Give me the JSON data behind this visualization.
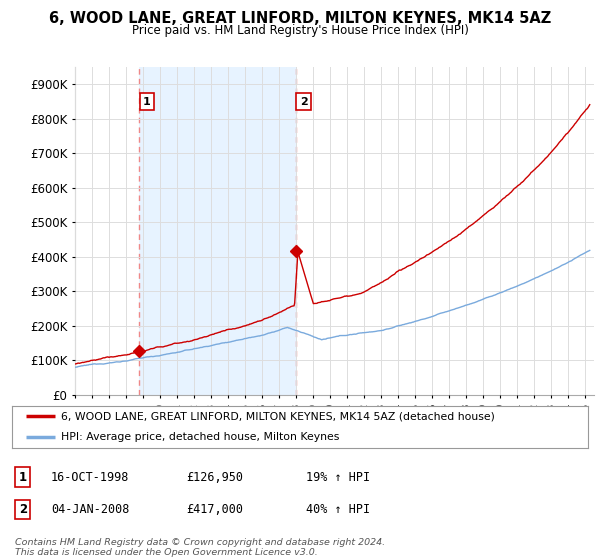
{
  "title": "6, WOOD LANE, GREAT LINFORD, MILTON KEYNES, MK14 5AZ",
  "subtitle": "Price paid vs. HM Land Registry's House Price Index (HPI)",
  "ylabel_ticks": [
    "£0",
    "£100K",
    "£200K",
    "£300K",
    "£400K",
    "£500K",
    "£600K",
    "£700K",
    "£800K",
    "£900K"
  ],
  "ylim": [
    0,
    950000
  ],
  "xlim_start": 1995.0,
  "xlim_end": 2025.5,
  "red_line_color": "#cc0000",
  "blue_line_color": "#7aaadd",
  "vline_color": "#ee8888",
  "shade_color": "#ddeeff",
  "sale1_x": 1998.79,
  "sale1_y": 126950,
  "sale1_label": "1",
  "sale2_x": 2008.01,
  "sale2_y": 417000,
  "sale2_label": "2",
  "legend_red_label": "6, WOOD LANE, GREAT LINFORD, MILTON KEYNES, MK14 5AZ (detached house)",
  "legend_blue_label": "HPI: Average price, detached house, Milton Keynes",
  "table_row1": [
    "1",
    "16-OCT-1998",
    "£126,950",
    "19% ↑ HPI"
  ],
  "table_row2": [
    "2",
    "04-JAN-2008",
    "£417,000",
    "40% ↑ HPI"
  ],
  "footer": "Contains HM Land Registry data © Crown copyright and database right 2024.\nThis data is licensed under the Open Government Licence v3.0.",
  "background_color": "#ffffff",
  "grid_color": "#dddddd"
}
